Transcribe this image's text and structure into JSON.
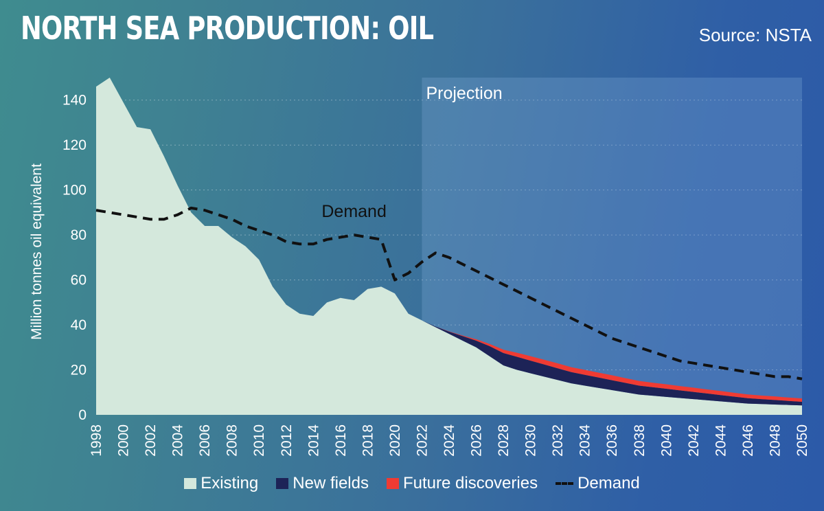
{
  "header": {
    "title": "NORTH SEA PRODUCTION: OIL",
    "source": "Source: NSTA"
  },
  "colors": {
    "existing": "#d4e8dc",
    "new_fields": "#1d2357",
    "future_discoveries": "#ef3b33",
    "demand": "#111111",
    "projection_band": "#7fa8d6"
  },
  "chart_data": {
    "type": "area",
    "title": "NORTH SEA PRODUCTION: OIL",
    "ylabel": "Million tonnes oil equivalent",
    "xlabel": "",
    "xlim": [
      1998,
      2050
    ],
    "ylim": [
      0,
      150
    ],
    "yticks": [
      0,
      20,
      40,
      60,
      80,
      100,
      120,
      140
    ],
    "xticks": [
      "1998",
      "2000",
      "2002",
      "2004",
      "2006",
      "2008",
      "2010",
      "2012",
      "2014",
      "2016",
      "2018",
      "2020",
      "2022",
      "2024",
      "2026",
      "2028",
      "2030",
      "2032",
      "2034",
      "2036",
      "2038",
      "2040",
      "2042",
      "2044",
      "2046",
      "2048",
      "2050"
    ],
    "grid": "horizontal-dotted",
    "legend_position": "bottom",
    "legend": [
      "Existing",
      "New fields",
      "Future discoveries",
      "Demand"
    ],
    "annotations": [
      {
        "text": "Projection",
        "x_start": 2022,
        "x_end": 2050
      },
      {
        "text": "Demand",
        "x": 2017,
        "y": 88
      }
    ],
    "stacked_series": [
      {
        "name": "Existing",
        "x": [
          1998,
          1999,
          2000,
          2001,
          2002,
          2003,
          2004,
          2005,
          2006,
          2007,
          2008,
          2009,
          2010,
          2011,
          2012,
          2013,
          2014,
          2015,
          2016,
          2017,
          2018,
          2019,
          2020,
          2021,
          2022,
          2023,
          2024,
          2025,
          2026,
          2027,
          2028,
          2029,
          2030,
          2031,
          2032,
          2033,
          2034,
          2035,
          2036,
          2037,
          2038,
          2039,
          2040,
          2041,
          2042,
          2043,
          2044,
          2045,
          2046,
          2047,
          2048,
          2049,
          2050
        ],
        "values": [
          146,
          150,
          139,
          128,
          127,
          115,
          102,
          90,
          84,
          84,
          79,
          75,
          69,
          57,
          49,
          45,
          44,
          50,
          52,
          51,
          56,
          57,
          54,
          45,
          42,
          39,
          36,
          33,
          30,
          26,
          22,
          20,
          18.5,
          17,
          15.5,
          14,
          13,
          12,
          11,
          10,
          9,
          8.5,
          8,
          7.5,
          7,
          6.5,
          6,
          5.5,
          5,
          4.8,
          4.6,
          4.4,
          4.2
        ]
      },
      {
        "name": "New fields",
        "x": [
          2022,
          2023,
          2024,
          2025,
          2026,
          2027,
          2028,
          2029,
          2030,
          2031,
          2032,
          2033,
          2034,
          2035,
          2036,
          2037,
          2038,
          2039,
          2040,
          2041,
          2042,
          2043,
          2044,
          2045,
          2046,
          2047,
          2048,
          2049,
          2050
        ],
        "values": [
          0,
          0.3,
          1,
          2,
          3,
          4.5,
          5.5,
          5.8,
          5.6,
          5.4,
          5.2,
          5.0,
          4.8,
          4.6,
          4.4,
          4.2,
          4.0,
          3.8,
          3.6,
          3.4,
          3.2,
          3.0,
          2.8,
          2.6,
          2.4,
          2.2,
          2.0,
          1.8,
          1.6
        ]
      },
      {
        "name": "Future discoveries",
        "x": [
          2022,
          2023,
          2024,
          2025,
          2026,
          2027,
          2028,
          2029,
          2030,
          2031,
          2032,
          2033,
          2034,
          2035,
          2036,
          2037,
          2038,
          2039,
          2040,
          2041,
          2042,
          2043,
          2044,
          2045,
          2046,
          2047,
          2048,
          2049,
          2050
        ],
        "values": [
          0,
          0,
          0.1,
          0.3,
          0.6,
          1.0,
          1.5,
          1.8,
          2.0,
          2.1,
          2.2,
          2.2,
          2.2,
          2.2,
          2.2,
          2.1,
          2.1,
          2.0,
          2.0,
          1.9,
          1.9,
          1.8,
          1.8,
          1.7,
          1.7,
          1.6,
          1.6,
          1.5,
          1.5
        ]
      }
    ],
    "line_series": {
      "name": "Demand",
      "x": [
        1998,
        1999,
        2000,
        2001,
        2002,
        2003,
        2004,
        2005,
        2006,
        2007,
        2008,
        2009,
        2010,
        2011,
        2012,
        2013,
        2014,
        2015,
        2016,
        2017,
        2018,
        2019,
        2020,
        2021,
        2022,
        2023,
        2024,
        2025,
        2026,
        2027,
        2028,
        2029,
        2030,
        2031,
        2032,
        2033,
        2034,
        2035,
        2036,
        2037,
        2038,
        2039,
        2040,
        2041,
        2042,
        2043,
        2044,
        2045,
        2046,
        2047,
        2048,
        2049,
        2050
      ],
      "values": [
        91,
        90,
        89,
        88,
        87,
        87,
        89,
        92,
        91,
        89,
        87,
        84,
        82,
        80,
        77,
        76,
        76,
        78,
        79,
        80,
        79,
        78,
        60,
        63,
        68,
        72,
        70,
        67,
        64,
        61,
        58,
        55,
        52,
        49,
        46,
        43,
        40,
        37,
        34,
        32,
        30,
        28,
        26,
        24,
        23,
        22,
        21,
        20,
        19,
        18,
        17,
        17,
        16
      ]
    }
  }
}
